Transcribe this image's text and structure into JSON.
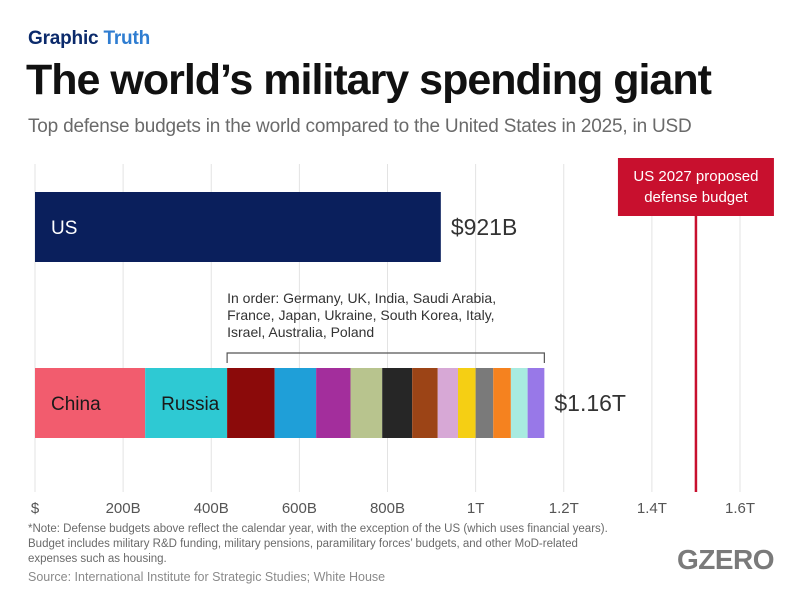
{
  "header": {
    "kicker_part1": "Graphic",
    "kicker_part2": "Truth",
    "title": "The world’s military spending giant",
    "subtitle": "Top defense budgets in the world compared to the United States in 2025, in USD"
  },
  "chart_data": {
    "type": "bar",
    "orientation": "horizontal",
    "stacked": true,
    "x_unit": "USD billions",
    "xlim": [
      0,
      1600
    ],
    "x_ticks": [
      0,
      200,
      400,
      600,
      800,
      1000,
      1200,
      1400,
      1600
    ],
    "x_tick_labels": [
      "$",
      "200B",
      "400B",
      "600B",
      "800B",
      "1T",
      "1.2T",
      "1.4T",
      "1.6T"
    ],
    "grid": "vertical",
    "bars": [
      {
        "segments": [
          {
            "name": "US",
            "value": 921,
            "color": "#0a1f5c",
            "label_color": "#ffffff"
          }
        ],
        "total_label": "$921B"
      },
      {
        "segments": [
          {
            "name": "China",
            "value": 250,
            "color": "#f25c6e",
            "label_color": "#1a1a1a"
          },
          {
            "name": "Russia",
            "value": 186,
            "color": "#2ec9d3",
            "label_color": "#1a1a1a"
          },
          {
            "name": "Germany",
            "value": 108,
            "color": "#8b0a0a"
          },
          {
            "name": "UK",
            "value": 94,
            "color": "#1f9fd8"
          },
          {
            "name": "India",
            "value": 78,
            "color": "#a32e9c"
          },
          {
            "name": "Saudi Arabia",
            "value": 72,
            "color": "#b8c48e"
          },
          {
            "name": "France",
            "value": 68,
            "color": "#262626"
          },
          {
            "name": "Japan",
            "value": 58,
            "color": "#9c4416"
          },
          {
            "name": "Ukraine",
            "value": 46,
            "color": "#d7a8d6"
          },
          {
            "name": "South Korea",
            "value": 40,
            "color": "#f5cf14"
          },
          {
            "name": "Italy",
            "value": 40,
            "color": "#7a7a7a"
          },
          {
            "name": "Israel",
            "value": 40,
            "color": "#f5821f"
          },
          {
            "name": "Australia",
            "value": 38,
            "color": "#a8ebe0"
          },
          {
            "name": "Poland",
            "value": 38,
            "color": "#9878e8"
          }
        ],
        "total_label": "$1.16T"
      }
    ],
    "annotations": {
      "bracket_text": "In order: Germany, UK, India, Saudi Arabia, France, Japan, Ukraine, South Korea, Italy, Israel, Australia, Poland",
      "reference_line": {
        "value": 1500,
        "label": "US 2027 proposed defense budget",
        "color": "#c8102e"
      }
    }
  },
  "footer": {
    "note": "*Note: Defense budgets above reflect the calendar year, with the exception of the US (which uses financial years). Budget includes military R&D funding, military pensions, paramilitary forces’ budgets, and other MoD-related expenses such as housing.",
    "source": "Source: International Institute for Strategic Studies; White House",
    "brand": "GZERO"
  }
}
